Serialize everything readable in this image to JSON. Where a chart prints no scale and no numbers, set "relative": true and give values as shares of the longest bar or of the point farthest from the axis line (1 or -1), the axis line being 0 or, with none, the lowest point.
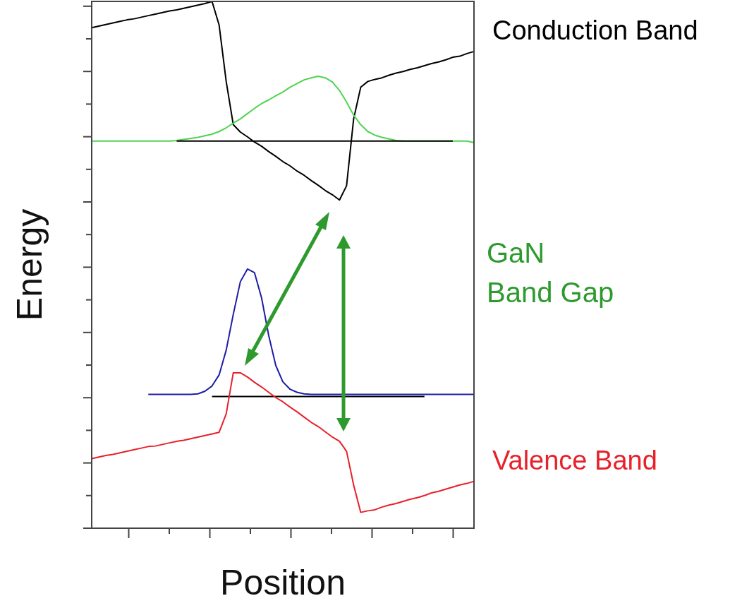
{
  "chart_data": {
    "type": "line",
    "relative": true,
    "xlabel": "Position",
    "ylabel": "Energy",
    "legend": false,
    "marker": "none",
    "line_style": "solid",
    "categories": [
      null,
      null,
      null,
      null,
      null,
      null,
      null,
      null,
      null,
      null,
      null,
      null,
      null,
      null,
      null,
      null,
      null,
      null,
      null,
      null,
      null,
      null,
      null,
      null,
      null,
      null,
      null,
      null,
      null,
      null,
      null,
      null,
      null,
      null,
      null,
      null,
      null,
      null,
      null,
      null,
      null,
      null,
      null,
      null,
      null,
      null,
      null,
      null,
      null,
      null,
      null,
      null,
      null,
      null,
      null
    ],
    "annotations": [
      "GaN\nBand Gap"
    ],
    "series": [
      {
        "name": "Conduction Band",
        "color": "#000000",
        "values": [
          0.95,
          0.953,
          0.956,
          0.959,
          0.962,
          0.965,
          0.967,
          0.97,
          0.973,
          0.976,
          0.979,
          0.982,
          0.984,
          0.987,
          0.99,
          0.993,
          0.996,
          1.0,
          0.955,
          0.848,
          0.766,
          0.752,
          0.743,
          0.733,
          0.725,
          0.715,
          0.706,
          0.696,
          0.688,
          0.678,
          0.67,
          0.66,
          0.651,
          0.641,
          0.633,
          0.623,
          0.65,
          0.777,
          0.837,
          0.848,
          0.852,
          0.855,
          0.86,
          0.864,
          0.867,
          0.871,
          0.874,
          0.878,
          0.882,
          0.885,
          0.889,
          0.894,
          0.896,
          0.901,
          0.905
        ]
      },
      {
        "color": "#4fd44f",
        "values": [
          0.735,
          0.735,
          0.735,
          0.735,
          0.735,
          0.735,
          0.735,
          0.735,
          0.735,
          0.735,
          0.735,
          0.735,
          0.736,
          0.738,
          0.74,
          0.742,
          0.745,
          0.748,
          0.753,
          0.76,
          0.769,
          0.777,
          0.787,
          0.797,
          0.806,
          0.813,
          0.821,
          0.828,
          0.837,
          0.844,
          0.851,
          0.855,
          0.858,
          0.855,
          0.847,
          0.831,
          0.809,
          0.784,
          0.766,
          0.753,
          0.746,
          0.742,
          0.739,
          0.736,
          0.735,
          0.735,
          0.735,
          0.735,
          0.735,
          0.735,
          0.735,
          0.735,
          0.735,
          0.735,
          0.732
        ]
      },
      {
        "color": "#000000",
        "values": [
          null,
          null,
          null,
          null,
          null,
          null,
          null,
          null,
          null,
          null,
          null,
          null,
          0.735,
          0.735,
          0.735,
          0.735,
          0.735,
          0.735,
          0.735,
          0.735,
          0.735,
          0.735,
          0.735,
          0.735,
          0.735,
          0.735,
          0.735,
          0.735,
          0.735,
          0.735,
          0.735,
          0.735,
          0.735,
          0.735,
          0.735,
          0.735,
          0.735,
          0.735,
          0.735,
          0.735,
          0.735,
          0.735,
          0.735,
          0.735,
          0.735,
          0.735,
          0.735,
          0.735,
          0.735,
          0.735,
          0.735,
          0.735,
          null,
          null,
          null
        ]
      },
      {
        "color": "#000000",
        "values": [
          null,
          null,
          null,
          null,
          null,
          null,
          null,
          null,
          null,
          null,
          null,
          null,
          null,
          null,
          null,
          null,
          null,
          0.25,
          0.25,
          0.25,
          0.25,
          0.25,
          0.25,
          0.25,
          0.25,
          0.25,
          0.25,
          0.25,
          0.25,
          0.25,
          0.25,
          0.25,
          0.25,
          0.25,
          0.25,
          0.25,
          0.25,
          0.25,
          0.25,
          0.25,
          0.25,
          0.25,
          0.25,
          0.25,
          0.25,
          0.25,
          0.25,
          0.25,
          null,
          null,
          null,
          null,
          null,
          null,
          null
        ]
      },
      {
        "color": "#1c1ca8",
        "values": [
          null,
          null,
          null,
          null,
          null,
          null,
          null,
          null,
          0.254,
          0.254,
          0.254,
          0.254,
          0.254,
          0.254,
          0.254,
          0.255,
          0.26,
          0.27,
          0.291,
          0.338,
          0.406,
          0.468,
          0.492,
          0.485,
          0.437,
          0.366,
          0.309,
          0.278,
          0.264,
          0.258,
          0.255,
          0.254,
          0.254,
          0.254,
          0.254,
          0.254,
          0.254,
          0.254,
          0.254,
          0.254,
          0.254,
          0.254,
          0.254,
          0.254,
          0.254,
          0.254,
          0.254,
          0.254,
          0.254,
          0.254,
          0.254,
          0.254,
          0.254,
          0.254,
          0.254
        ]
      },
      {
        "name": "Valence Band",
        "color": "#e8202a",
        "values": [
          0.132,
          0.135,
          0.138,
          0.14,
          0.143,
          0.146,
          0.149,
          0.152,
          0.155,
          0.156,
          0.159,
          0.162,
          0.165,
          0.167,
          0.17,
          0.173,
          0.176,
          0.179,
          0.182,
          0.217,
          0.295,
          0.295,
          0.287,
          0.277,
          0.268,
          0.258,
          0.248,
          0.24,
          0.23,
          0.221,
          0.211,
          0.201,
          0.193,
          0.183,
          0.173,
          0.165,
          0.146,
          0.082,
          0.03,
          0.033,
          0.035,
          0.04,
          0.044,
          0.047,
          0.051,
          0.055,
          0.058,
          0.062,
          0.067,
          0.07,
          0.074,
          0.078,
          0.082,
          0.085,
          0.089
        ]
      }
    ]
  }
}
